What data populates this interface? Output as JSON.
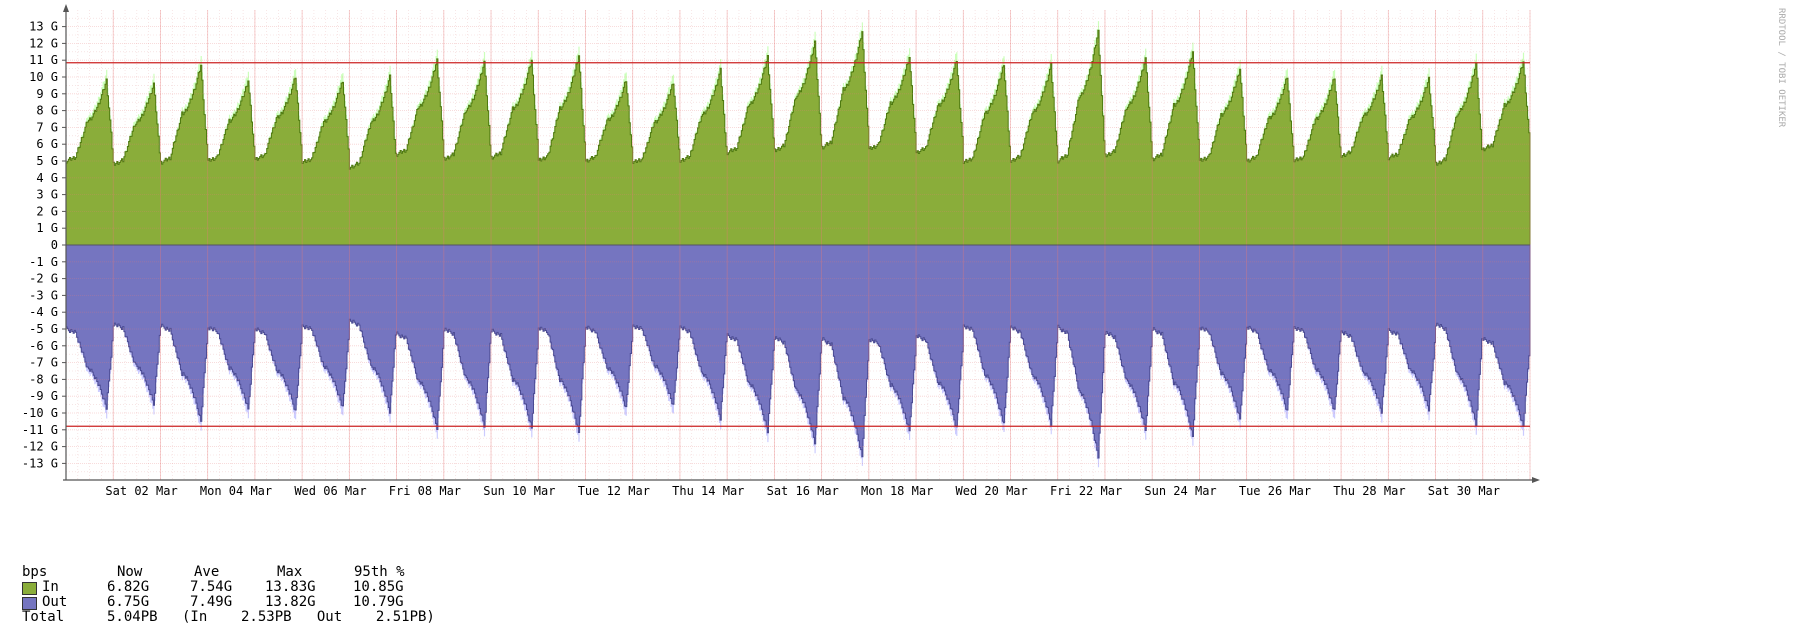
{
  "chart_data": {
    "type": "area",
    "unit": "bps",
    "watermark": "RRDTOOL / TOBI OETIKER",
    "y_ticks": [
      "13 G",
      "12 G",
      "11 G",
      "10 G",
      "9 G",
      "8 G",
      "7 G",
      "6 G",
      "5 G",
      "4 G",
      "3 G",
      "2 G",
      "1 G",
      "0",
      "-1 G",
      "-2 G",
      "-3 G",
      "-4 G",
      "-5 G",
      "-6 G",
      "-7 G",
      "-8 G",
      "-9 G",
      "-10 G",
      "-11 G",
      "-12 G",
      "-13 G"
    ],
    "ylim": [
      -14,
      14
    ],
    "x_labels": [
      "Sat 02 Mar",
      "Mon 04 Mar",
      "Wed 06 Mar",
      "Fri 08 Mar",
      "Sun 10 Mar",
      "Tue 12 Mar",
      "Thu 14 Mar",
      "Sat 16 Mar",
      "Mon 18 Mar",
      "Wed 20 Mar",
      "Fri 22 Mar",
      "Sun 24 Mar",
      "Tue 26 Mar",
      "Thu 28 Mar",
      "Sat 30 Mar"
    ],
    "days": 31,
    "percentile_line_in": 10.85,
    "percentile_line_out": -10.79,
    "series": [
      {
        "name": "In",
        "color": "#8aad3a",
        "max_color": "#ccffbb",
        "daily_low": [
          5.0,
          4.8,
          4.9,
          5.0,
          5.1,
          4.9,
          4.6,
          5.4,
          5.1,
          5.2,
          5.0,
          5.0,
          4.9,
          5.0,
          5.5,
          5.6,
          5.8,
          5.7,
          5.5,
          4.9,
          5.0,
          5.0,
          5.3,
          5.1,
          5.0,
          5.0,
          5.0,
          5.3,
          5.2,
          4.8,
          5.7
        ],
        "daily_peak": [
          9.8,
          9.6,
          10.7,
          9.8,
          10.0,
          9.8,
          10.0,
          11.0,
          10.9,
          11.0,
          11.3,
          9.8,
          9.7,
          10.4,
          11.2,
          12.1,
          12.7,
          11.2,
          11.0,
          10.8,
          10.7,
          12.7,
          11.1,
          11.5,
          10.5,
          10.0,
          10.0,
          10.0,
          9.9,
          10.8,
          10.9
        ]
      },
      {
        "name": "Out",
        "color": "#7575c0",
        "max_color": "#ccccff",
        "daily_low": [
          5.0,
          4.7,
          4.8,
          4.9,
          5.0,
          4.8,
          4.5,
          5.3,
          5.0,
          5.1,
          4.9,
          4.9,
          4.8,
          4.9,
          5.4,
          5.5,
          5.6,
          5.6,
          5.4,
          4.8,
          4.9,
          4.9,
          5.2,
          5.0,
          4.9,
          4.9,
          4.9,
          5.2,
          5.1,
          4.7,
          5.6
        ],
        "daily_peak": [
          9.7,
          9.5,
          10.5,
          9.8,
          9.9,
          9.7,
          9.9,
          10.9,
          10.8,
          10.9,
          11.2,
          9.7,
          9.6,
          10.3,
          11.1,
          11.8,
          12.6,
          11.1,
          10.9,
          10.7,
          10.6,
          12.6,
          11.0,
          11.4,
          10.4,
          9.9,
          9.9,
          9.9,
          9.8,
          10.7,
          10.8
        ]
      }
    ]
  },
  "legend": {
    "header": {
      "unit": "bps",
      "now": "Now",
      "ave": "Ave",
      "max": "Max",
      "pct": "95th %"
    },
    "in": {
      "label": "In",
      "now": "6.82G",
      "ave": "7.54G",
      "max": "13.83G",
      "pct": "10.85G"
    },
    "out": {
      "label": "Out",
      "now": "6.75G",
      "ave": "7.49G",
      "max": "13.82G",
      "pct": "10.79G"
    },
    "total": {
      "label": "Total",
      "value": "5.04PB",
      "detail": "(In    2.53PB   Out    2.51PB)"
    }
  }
}
